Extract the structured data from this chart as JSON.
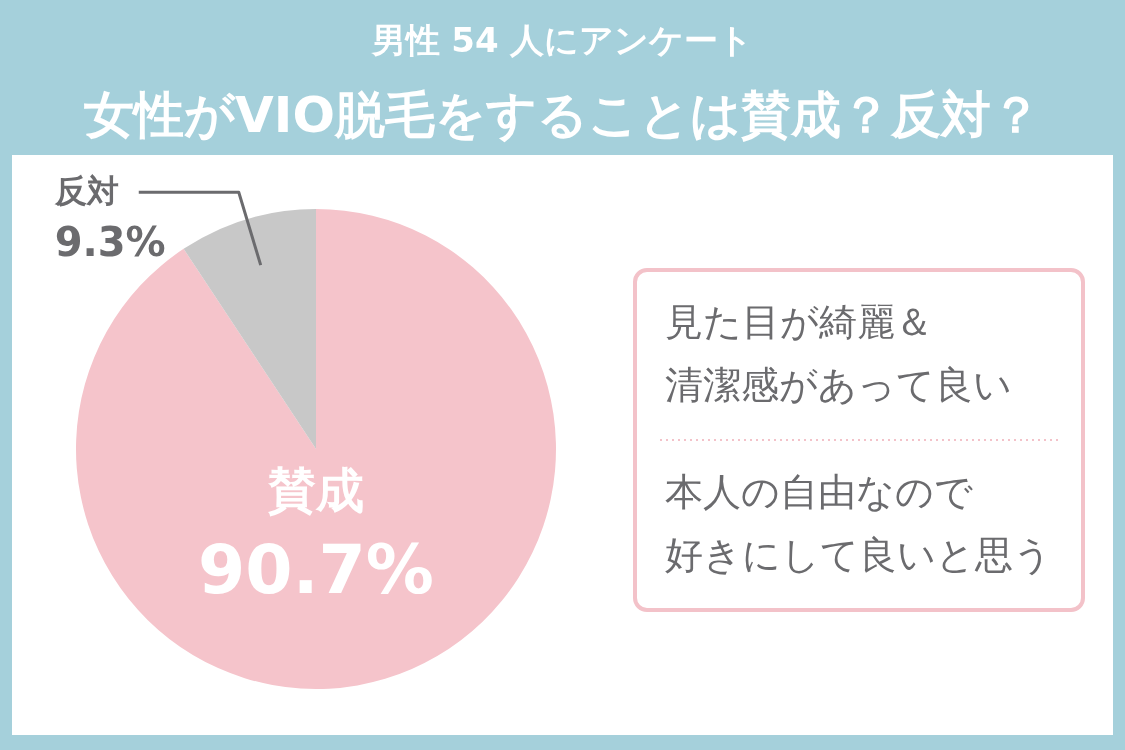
{
  "chart_data": {
    "type": "pie",
    "subtitle": "男性 54 人にアンケート",
    "title": "女性がVIO脱毛をすることは賛成？反対？",
    "categories": [
      "賛成",
      "反対"
    ],
    "values": [
      90.7,
      9.3
    ],
    "colors": [
      "#f5c4cb",
      "#c8c8c8"
    ],
    "value_labels": [
      "90.7%",
      "9.3%"
    ],
    "annotations": [
      "見た目が綺麗＆清潔感があって良い",
      "本人の自由なので好きにして良いと思う"
    ]
  }
}
